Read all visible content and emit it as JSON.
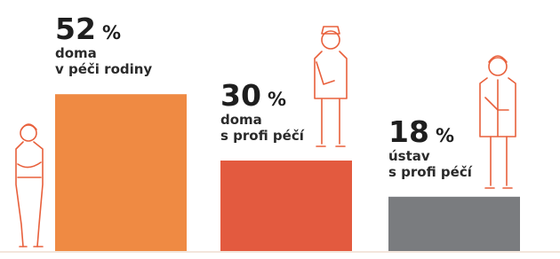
{
  "chart_data": {
    "type": "bar",
    "categories": [
      [
        "doma",
        "v péči rodiny"
      ],
      [
        "doma",
        "s profi péčí"
      ],
      [
        "ústav",
        "s profi péčí"
      ]
    ],
    "values": [
      52,
      30,
      18
    ],
    "unit": "%",
    "colors": [
      "#ef8a43",
      "#e35a3f",
      "#7a7c7f"
    ]
  }
}
